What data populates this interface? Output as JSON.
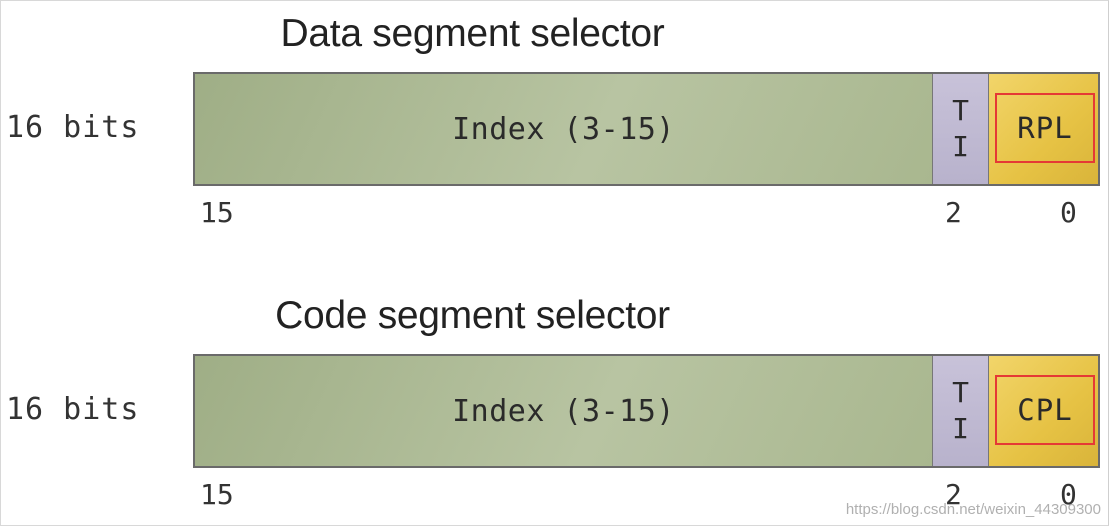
{
  "diagrams": [
    {
      "title": "Data segment selector",
      "size_label": "16 bits",
      "index_label": "Index (3-15)",
      "ti_top": "T",
      "ti_bottom": "I",
      "pl_label": "RPL",
      "bit_high": "15",
      "bit_mid": "2",
      "bit_low": "0"
    },
    {
      "title": "Code segment selector",
      "size_label": "16 bits",
      "index_label": "Index (3-15)",
      "ti_top": "T",
      "ti_bottom": "I",
      "pl_label": "CPL",
      "bit_high": "15",
      "bit_mid": "2",
      "bit_low": "0"
    }
  ],
  "watermark": "https://blog.csdn.net/weixin_44309300",
  "colors": {
    "index_field": "#b2bf9b",
    "ti_field": "#c2bcd4",
    "pl_field": "#e8c54a",
    "highlight_box": "#e53935"
  }
}
